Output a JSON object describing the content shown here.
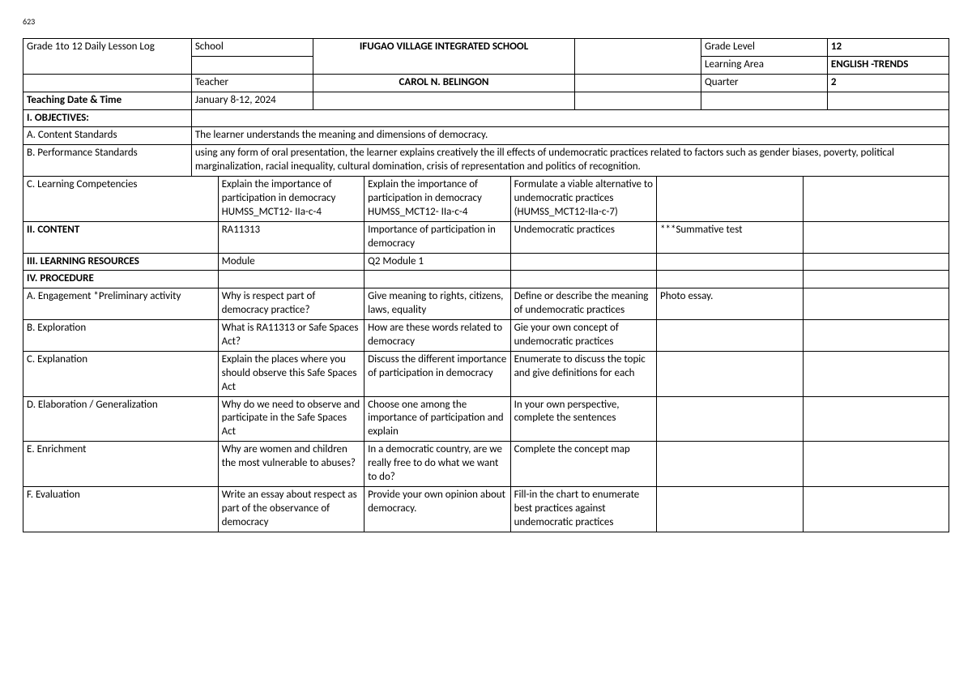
{
  "page_number": "623",
  "header": {
    "title_label": "Grade 1to 12 Daily Lesson Log",
    "school_label": "School",
    "school_value": "IFUGAO VILLAGE INTEGRATED SCHOOL",
    "grade_level_label": "Grade Level",
    "grade_level_value": "12",
    "learning_area_label": "Learning Area",
    "learning_area_value": "ENGLISH -TRENDS",
    "teacher_label": "Teacher",
    "teacher_value": "CAROL N. BELINGON",
    "quarter_label": "Quarter",
    "quarter_value": "2",
    "date_label": "Teaching Date & Time",
    "date_value": "January 8-12, 2024"
  },
  "sections": {
    "objectives": "I. OBJECTIVES:",
    "content_std_label": "A. Content Standards",
    "content_std_value": "The learner understands the meaning and dimensions of democracy.",
    "perf_std_label": "B. Performance Standards",
    "perf_std_value": "using any form of oral presentation, the learner explains creatively the ill effects of undemocratic practices related to factors such as gender biases, poverty, political marginalization, racial inequality, cultural domination, crisis of representation and politics of recognition.",
    "competencies_label": "C. Learning Competencies",
    "competencies": {
      "d1": "Explain the importance of participation in democracy HUMSS_MCT12- IIa-c-4",
      "d2": "Explain the importance of participation in democracy HUMSS_MCT12- IIa-c-4",
      "d3": "Formulate a viable alternative to undemocratic practices (HUMSS_MCT12-IIa-c-7)",
      "d4": "",
      "d5": ""
    },
    "content_label": "II. CONTENT",
    "content": {
      "d1": "RA11313",
      "d2": "Importance of participation in democracy",
      "d3": "Undemocratic practices",
      "d4": "***Summative test",
      "d5": ""
    },
    "resources_label": "III. LEARNING RESOURCES",
    "resources": {
      "d1": "Module",
      "d2": "Q2 Module 1",
      "d3": "",
      "d4": "",
      "d5": ""
    },
    "procedure_label": "IV. PROCEDURE",
    "engagement_label": "A. Engagement *Preliminary activity",
    "engagement": {
      "d1": "Why is respect part of democracy practice?",
      "d2": "Give meaning to rights, citizens, laws, equality",
      "d3": "Define or describe the meaning of undemocratic practices",
      "d4": "Photo essay.",
      "d5": ""
    },
    "exploration_label": "B. Exploration",
    "exploration": {
      "d1": "What is RA11313 or Safe Spaces Act?",
      "d2": "How are these words related to democracy",
      "d3": "Gie your own concept of undemocratic practices",
      "d4": "",
      "d5": ""
    },
    "explanation_label": "C. Explanation",
    "explanation": {
      "d1": "Explain the places where you should observe this Safe Spaces Act",
      "d2": "Discuss the different importance of participation in democracy",
      "d3": "Enumerate to discuss the topic and give definitions for each",
      "d4": "",
      "d5": ""
    },
    "elaboration_label": "D. Elaboration / Generalization",
    "elaboration": {
      "d1": "Why do we need to observe and participate in the Safe Spaces Act",
      "d2": "Choose one among the importance of participation and explain",
      "d3": "In your own perspective, complete the sentences",
      "d4": "",
      "d5": ""
    },
    "enrichment_label": "E. Enrichment",
    "enrichment": {
      "d1": "Why are women and children the most vulnerable to abuses?",
      "d2": "In a democratic country, are we really free to do what we want to do?",
      "d3": "Complete the concept map",
      "d4": "",
      "d5": ""
    },
    "evaluation_label": "F. Evaluation",
    "evaluation": {
      "d1": "Write an essay about respect as part of the observance of democracy",
      "d2": "Provide your own opinion about democracy.",
      "d3": "Fill-in the chart to enumerate best practices against undemocratic practices",
      "d4": "",
      "d5": ""
    }
  }
}
